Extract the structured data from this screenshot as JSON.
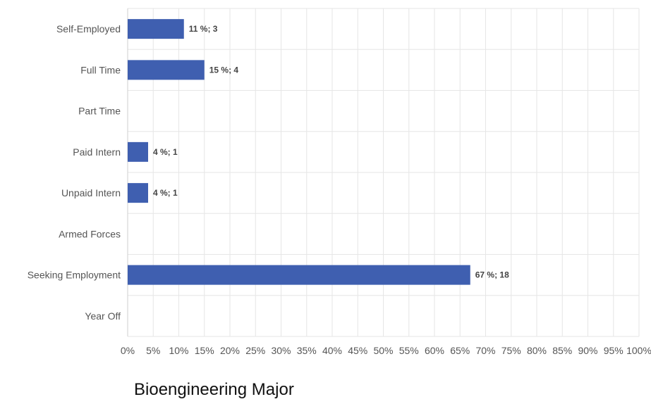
{
  "caption": "Bioengineering Major",
  "chart_data": {
    "type": "bar",
    "orientation": "horizontal",
    "categories": [
      "Self-Employed",
      "Full Time",
      "Part Time",
      "Paid Intern",
      "Unpaid Intern",
      "Armed Forces",
      "Seeking Employment",
      "Year Off"
    ],
    "values": [
      11,
      15,
      0,
      4,
      4,
      0,
      67,
      0
    ],
    "counts": [
      3,
      4,
      0,
      1,
      1,
      0,
      18,
      0
    ],
    "data_labels": [
      "11 %; 3",
      "15 %; 4",
      "",
      "4 %; 1",
      "4 %; 1",
      "",
      "67 %; 18",
      ""
    ],
    "x_ticks": [
      "0%",
      "5%",
      "10%",
      "15%",
      "20%",
      "25%",
      "30%",
      "35%",
      "40%",
      "45%",
      "50%",
      "55%",
      "60%",
      "65%",
      "70%",
      "75%",
      "80%",
      "85%",
      "90%",
      "95%",
      "100%"
    ],
    "xlim": [
      0,
      100
    ],
    "grid": true,
    "bar_color": "#3f5fb0",
    "title": "",
    "xlabel": "",
    "ylabel": ""
  }
}
